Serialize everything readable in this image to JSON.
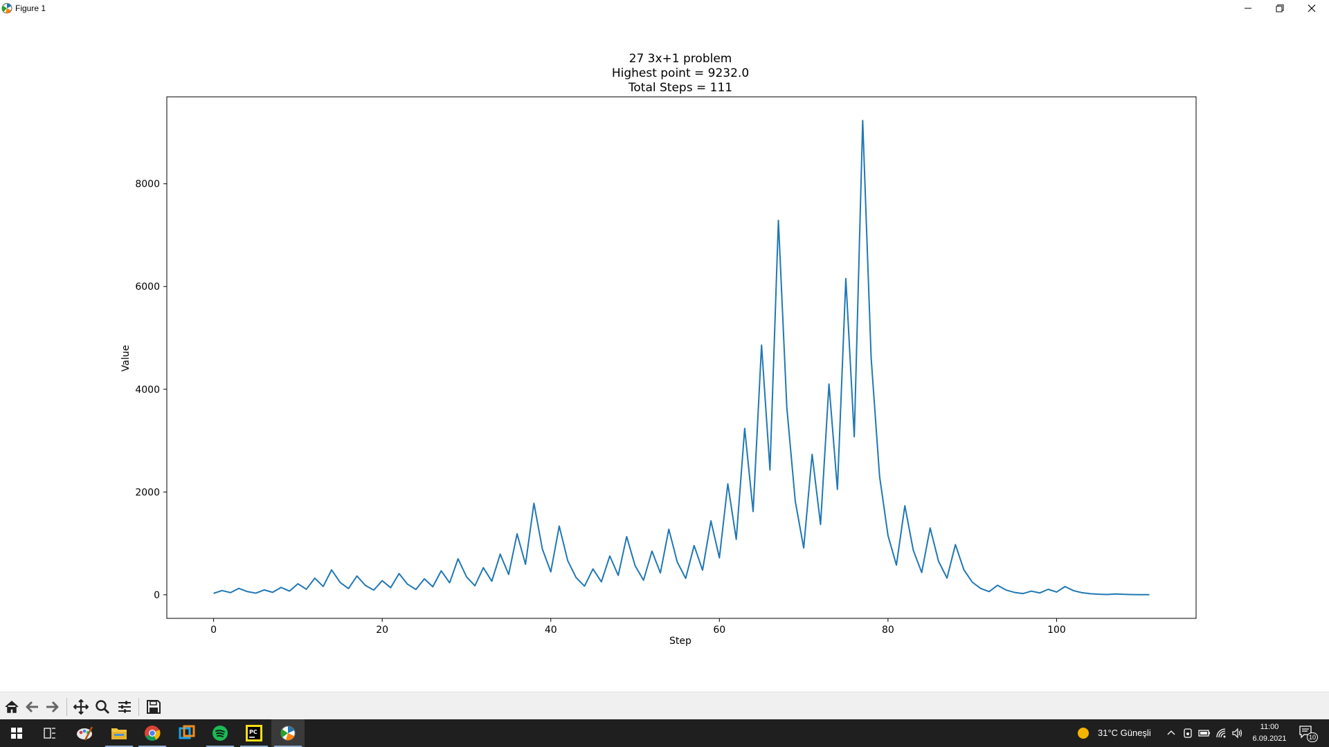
{
  "window": {
    "title": "Figure 1"
  },
  "toolbar": {
    "buttons": [
      "home-icon",
      "back-arrow-icon",
      "forward-arrow-icon",
      "pan-icon",
      "zoom-icon",
      "configure-subplots-icon",
      "save-icon"
    ]
  },
  "taskbar": {
    "weather": "31°C  Güneşli",
    "time": "11:00",
    "date": "6.09.2021",
    "notification_count": "10",
    "apps": [
      "start-icon",
      "task-view-icon",
      "paint-icon",
      "file-explorer-icon",
      "chrome-icon",
      "remote-desktop-icon",
      "spotify-icon",
      "pycharm-icon",
      "matplotlib-figure-icon"
    ]
  },
  "colors": {
    "line": "#1f77b4",
    "taskbar": "#1f1f1f",
    "toolbar": "#f0f0f0"
  },
  "chart_data": {
    "type": "line",
    "title_lines": [
      "27 3x+1 problem",
      "Highest point = 9232.0",
      "Total Steps = 111"
    ],
    "xlabel": "Step",
    "ylabel": "Value",
    "xlim": [
      -5.55,
      116.55
    ],
    "ylim": [
      -459.45,
      9692.45
    ],
    "xticks": [
      0,
      20,
      40,
      60,
      80,
      100
    ],
    "yticks": [
      0,
      2000,
      4000,
      6000,
      8000
    ],
    "series": [
      {
        "values": [
          27,
          82,
          41,
          124,
          62,
          31,
          94,
          47,
          142,
          71,
          214,
          107,
          322,
          161,
          484,
          242,
          121,
          364,
          182,
          91,
          274,
          137,
          412,
          206,
          103,
          310,
          155,
          466,
          233,
          700,
          350,
          175,
          526,
          263,
          790,
          395,
          1186,
          593,
          1780,
          890,
          445,
          1336,
          668,
          334,
          167,
          502,
          251,
          754,
          377,
          1132,
          566,
          283,
          850,
          425,
          1276,
          638,
          319,
          958,
          479,
          1438,
          719,
          2158,
          1079,
          3238,
          1619,
          4858,
          2429,
          7288,
          3644,
          1822,
          911,
          2734,
          1367,
          4102,
          2051,
          6154,
          3077,
          9232,
          4616,
          2308,
          1154,
          577,
          1732,
          866,
          433,
          1300,
          650,
          325,
          976,
          488,
          244,
          122,
          61,
          184,
          92,
          46,
          23,
          70,
          35,
          106,
          53,
          160,
          80,
          40,
          20,
          10,
          5,
          16,
          8,
          4,
          2,
          1
        ]
      }
    ]
  }
}
